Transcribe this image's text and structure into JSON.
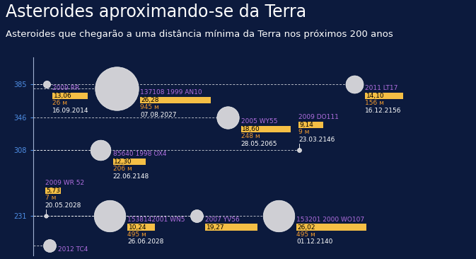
{
  "chart_data": {
    "type": "scatter",
    "title": "Asteroides aproximando-se da Terra",
    "subtitle": "Asteroides que chegarão a uma distância mínima da Terra nos próximos 200 anos",
    "ylim": [
      185,
      417
    ],
    "yticks": [
      231,
      308,
      346,
      385
    ],
    "tick_labels": "y",
    "data_labels": true,
    "color": "#cfcfd4",
    "points": [
      {
        "name": "2009 RR",
        "y": 385,
        "value": 13.06,
        "value_label": "13,06",
        "size": 26,
        "size_label": "26 м",
        "date": "16.09.2014"
      },
      {
        "name": "2012 TC4",
        "y": 196
      },
      {
        "name": "2009 WR 52",
        "y": 231,
        "value": 5.73,
        "value_label": "5,73",
        "size": 7,
        "size_label": "7 м",
        "date": "20.05.2028"
      },
      {
        "name": "1538142001 WN5",
        "y": 231,
        "value": 10.24,
        "value_label": "10,24",
        "size": 495,
        "size_label": "495 м",
        "date": "26.06.2028"
      },
      {
        "name": "137108 1999 AN10",
        "y": 380,
        "value": 26.28,
        "value_label": "26,28",
        "size": 945,
        "size_label": "945 м",
        "date": "07.08.2027"
      },
      {
        "name": "2005 WY55",
        "y": 346,
        "value": 18.6,
        "value_label": "18,60",
        "size": 248,
        "size_label": "248 м",
        "date": "28.05.2065"
      },
      {
        "name": "2007 YV56",
        "y": 231,
        "value": 19.27,
        "value_label": "19,27"
      },
      {
        "name": "153201 2000 WO107",
        "y": 231,
        "value": 26.02,
        "value_label": "26,02",
        "size": 495,
        "size_label": "495 м",
        "date": "01.12.2140"
      },
      {
        "name": "2009 DO111",
        "y": 308,
        "value": 9.14,
        "value_label": "9,14",
        "size": 9,
        "size_label": "9 м",
        "date": "23.03.2146"
      },
      {
        "name": "85640 1998 OX4",
        "y": 308,
        "value": 12.3,
        "value_label": "12,30",
        "size": 206,
        "size_label": "206 м",
        "date": "22.06.2148"
      },
      {
        "name": "2011 LT17",
        "y": 385,
        "value": 14.1,
        "value_label": "14,10",
        "size": 156,
        "size_label": "156 м",
        "date": "16.12.2156"
      }
    ]
  }
}
